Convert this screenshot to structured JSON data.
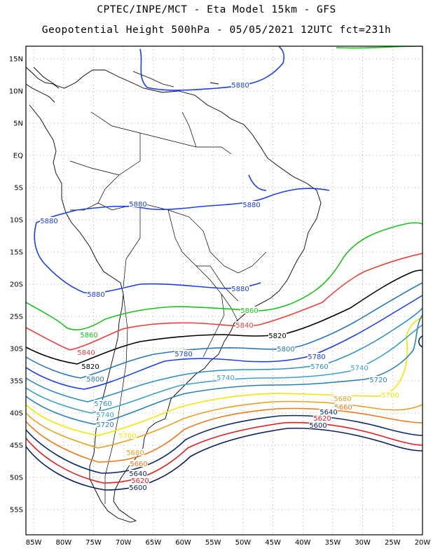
{
  "header": {
    "line1": "CPTEC/INPE/MCT -  Eta Model 15km - GFS",
    "line2": "Geopotential Height 500hPa - 05/05/2021 12UTC fct=231h"
  },
  "map": {
    "lat_labels": [
      "15N",
      "10N",
      "5N",
      "EQ",
      "5S",
      "10S",
      "15S",
      "20S",
      "25S",
      "30S",
      "35S",
      "40S",
      "45S",
      "50S",
      "55S"
    ],
    "lon_labels": [
      "85W",
      "80W",
      "75W",
      "70W",
      "65W",
      "60W",
      "55W",
      "50W",
      "45W",
      "40W",
      "35W",
      "30W",
      "25W",
      "20W"
    ],
    "colors": {
      "5880": "#1a3fe6",
      "5860": "#19c219",
      "5840": "#e8403a",
      "5820": "#000000",
      "5800": "#2878b8",
      "5780": "#1a3fe6",
      "5760": "#2b8fc0",
      "5740": "#3aa0c8",
      "5720": "#2b7fb8",
      "5700": "#f2e600",
      "5680": "#e8a020",
      "5660": "#f07818",
      "5640": "#0a2a6e",
      "5620": "#e02020",
      "5600": "#0a1f5c"
    },
    "contour_labels": [
      {
        "text": "5880",
        "color_key": "5880"
      },
      {
        "text": "5880",
        "color_key": "5880"
      },
      {
        "text": "5880",
        "color_key": "5880"
      },
      {
        "text": "5880",
        "color_key": "5880"
      },
      {
        "text": "5880",
        "color_key": "5880"
      },
      {
        "text": "5880",
        "color_key": "5880"
      },
      {
        "text": "5860",
        "color_key": "5860"
      },
      {
        "text": "5860",
        "color_key": "5860"
      },
      {
        "text": "5840",
        "color_key": "5840"
      },
      {
        "text": "5840",
        "color_key": "5840"
      },
      {
        "text": "5820",
        "color_key": "5820"
      },
      {
        "text": "5820",
        "color_key": "5820"
      },
      {
        "text": "5800",
        "color_key": "5800"
      },
      {
        "text": "5800",
        "color_key": "5800"
      },
      {
        "text": "5780",
        "color_key": "5780"
      },
      {
        "text": "5780",
        "color_key": "5780"
      },
      {
        "text": "5760",
        "color_key": "5760"
      },
      {
        "text": "5760",
        "color_key": "5760"
      },
      {
        "text": "5740",
        "color_key": "5740"
      },
      {
        "text": "5740",
        "color_key": "5740"
      },
      {
        "text": "5740",
        "color_key": "5740"
      },
      {
        "text": "5720",
        "color_key": "5720"
      },
      {
        "text": "5720",
        "color_key": "5720"
      },
      {
        "text": "5700",
        "color_key": "5700"
      },
      {
        "text": "5700",
        "color_key": "5700"
      },
      {
        "text": "5680",
        "color_key": "5680"
      },
      {
        "text": "5680",
        "color_key": "5680"
      },
      {
        "text": "5660",
        "color_key": "5660"
      },
      {
        "text": "5660",
        "color_key": "5660"
      },
      {
        "text": "5640",
        "color_key": "5640"
      },
      {
        "text": "5640",
        "color_key": "5640"
      },
      {
        "text": "5620",
        "color_key": "5620"
      },
      {
        "text": "5620",
        "color_key": "5620"
      },
      {
        "text": "5600",
        "color_key": "5600"
      },
      {
        "text": "5600",
        "color_key": "5600"
      }
    ]
  }
}
